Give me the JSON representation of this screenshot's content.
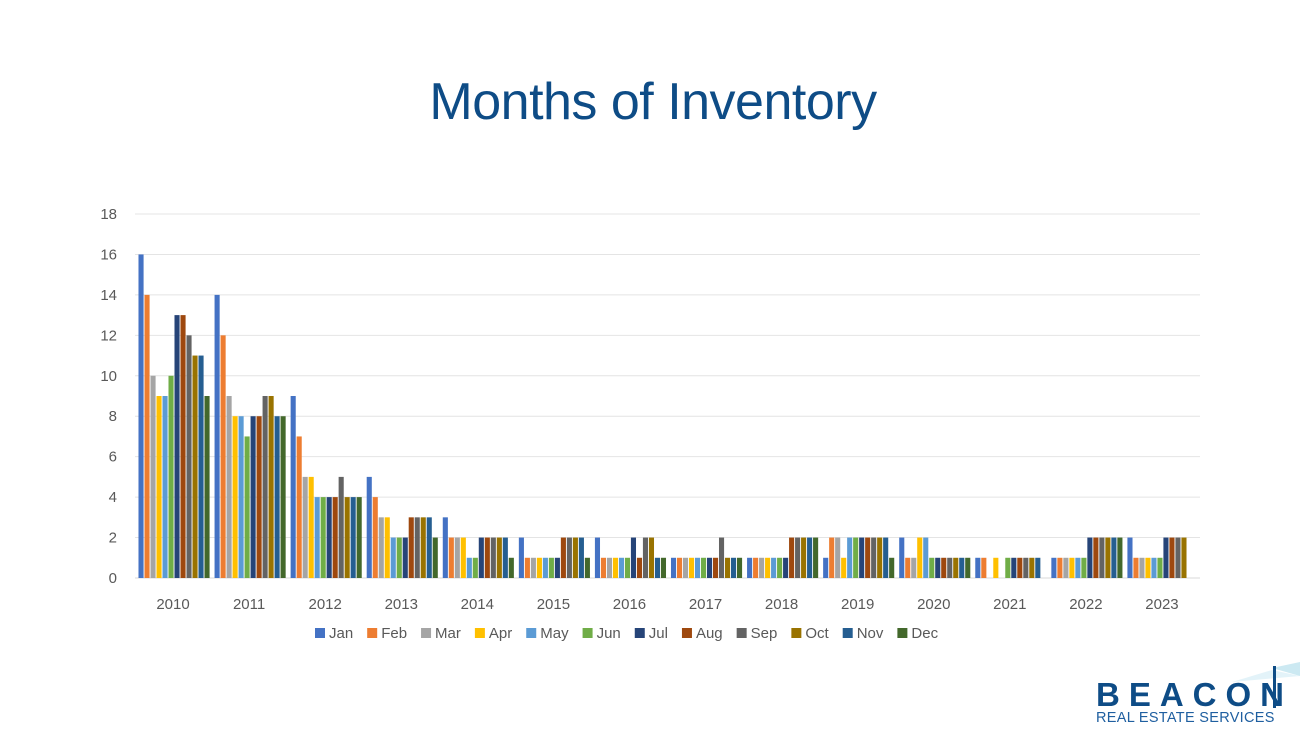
{
  "page": {
    "title": "Months of Inventory"
  },
  "logo": {
    "word": "BEACON",
    "subtitle": "REAL ESTATE SERVICES"
  },
  "chart_data": {
    "type": "bar",
    "title": "Months of Inventory",
    "xlabel": "",
    "ylabel": "",
    "ylim": [
      0,
      18
    ],
    "yticks": [
      0,
      2,
      4,
      6,
      8,
      10,
      12,
      14,
      16,
      18
    ],
    "grid": true,
    "legend_position": "bottom",
    "categories": [
      "2010",
      "2011",
      "2012",
      "2013",
      "2014",
      "2015",
      "2016",
      "2017",
      "2018",
      "2019",
      "2020",
      "2021",
      "2022",
      "2023"
    ],
    "series": [
      {
        "name": "Jan",
        "color": "#4472c4",
        "values": [
          16,
          14,
          9,
          5,
          3,
          2,
          2,
          1,
          1,
          1,
          2,
          1,
          1,
          2
        ]
      },
      {
        "name": "Feb",
        "color": "#ed7d31",
        "values": [
          14,
          12,
          7,
          4,
          2,
          1,
          1,
          1,
          1,
          2,
          1,
          1,
          1,
          1
        ]
      },
      {
        "name": "Mar",
        "color": "#a5a5a5",
        "values": [
          10,
          9,
          5,
          3,
          2,
          1,
          1,
          1,
          1,
          2,
          1,
          0,
          1,
          1
        ]
      },
      {
        "name": "Apr",
        "color": "#ffc000",
        "values": [
          9,
          8,
          5,
          3,
          2,
          1,
          1,
          1,
          1,
          1,
          2,
          1,
          1,
          1
        ]
      },
      {
        "name": "May",
        "color": "#5b9bd5",
        "values": [
          9,
          8,
          4,
          2,
          1,
          1,
          1,
          1,
          1,
          2,
          2,
          0,
          1,
          1
        ]
      },
      {
        "name": "Jun",
        "color": "#70ad47",
        "values": [
          10,
          7,
          4,
          2,
          1,
          1,
          1,
          1,
          1,
          2,
          1,
          1,
          1,
          1
        ]
      },
      {
        "name": "Jul",
        "color": "#264478",
        "values": [
          13,
          8,
          4,
          2,
          2,
          1,
          2,
          1,
          1,
          2,
          1,
          1,
          2,
          2
        ]
      },
      {
        "name": "Aug",
        "color": "#9e480e",
        "values": [
          13,
          8,
          4,
          3,
          2,
          2,
          1,
          1,
          2,
          2,
          1,
          1,
          2,
          2
        ]
      },
      {
        "name": "Sep",
        "color": "#636363",
        "values": [
          12,
          9,
          5,
          3,
          2,
          2,
          2,
          2,
          2,
          2,
          1,
          1,
          2,
          2
        ]
      },
      {
        "name": "Oct",
        "color": "#997300",
        "values": [
          11,
          9,
          4,
          3,
          2,
          2,
          2,
          1,
          2,
          2,
          1,
          1,
          2,
          2
        ]
      },
      {
        "name": "Nov",
        "color": "#255e91",
        "values": [
          11,
          8,
          4,
          3,
          2,
          2,
          1,
          1,
          2,
          2,
          1,
          1,
          2,
          null
        ]
      },
      {
        "name": "Dec",
        "color": "#43682b",
        "values": [
          9,
          8,
          4,
          2,
          1,
          1,
          1,
          1,
          2,
          1,
          1,
          null,
          2,
          null
        ]
      }
    ]
  }
}
